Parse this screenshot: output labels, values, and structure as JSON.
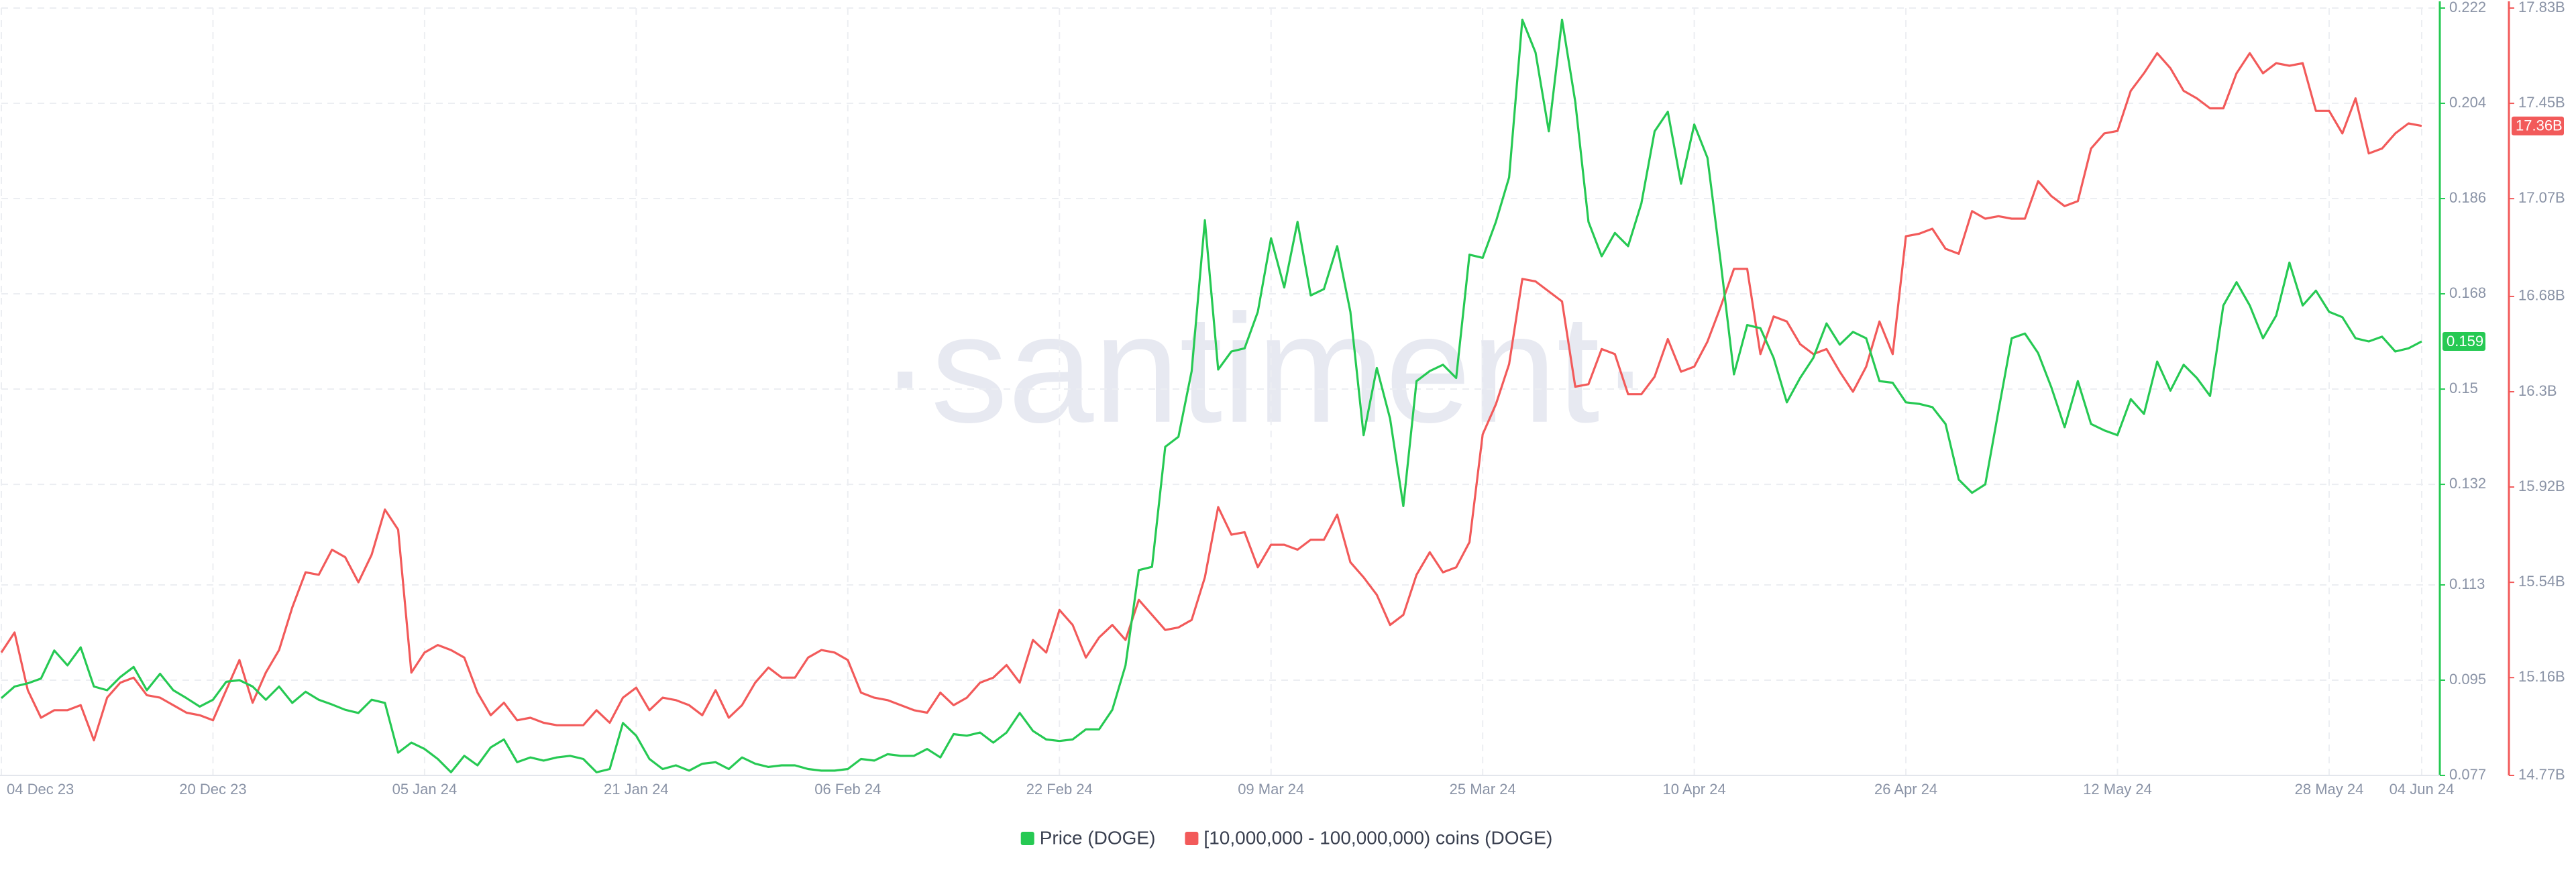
{
  "chart_data": {
    "type": "line",
    "watermark": "·santiment·",
    "categories": [
      "04 Dec 23",
      null,
      null,
      null,
      null,
      null,
      null,
      null,
      null,
      null,
      null,
      null,
      null,
      null,
      null,
      null,
      "20 Dec 23",
      null,
      null,
      null,
      null,
      null,
      null,
      null,
      null,
      null,
      null,
      null,
      null,
      null,
      null,
      null,
      "05 Jan 24",
      null,
      null,
      null,
      null,
      null,
      null,
      null,
      null,
      null,
      null,
      null,
      null,
      null,
      null,
      null,
      "21 Jan 24",
      null,
      null,
      null,
      null,
      null,
      null,
      null,
      null,
      null,
      null,
      null,
      null,
      null,
      null,
      null,
      "06 Feb 24",
      null,
      null,
      null,
      null,
      null,
      null,
      null,
      null,
      null,
      null,
      null,
      null,
      null,
      null,
      null,
      "22 Feb 24",
      null,
      null,
      null,
      null,
      null,
      null,
      null,
      null,
      null,
      null,
      null,
      null,
      null,
      null,
      null,
      "09 Mar 24",
      null,
      null,
      null,
      null,
      null,
      null,
      null,
      null,
      null,
      null,
      null,
      null,
      null,
      null,
      null,
      "25 Mar 24",
      null,
      null,
      null,
      null,
      null,
      null,
      null,
      null,
      null,
      null,
      null,
      null,
      null,
      null,
      null,
      "10 Apr 24",
      null,
      null,
      null,
      null,
      null,
      null,
      null,
      null,
      null,
      null,
      null,
      null,
      null,
      null,
      null,
      "26 Apr 24",
      null,
      null,
      null,
      null,
      null,
      null,
      null,
      null,
      null,
      null,
      null,
      null,
      null,
      null,
      null,
      "12 May 24",
      null,
      null,
      null,
      null,
      null,
      null,
      null,
      null,
      null,
      null,
      null,
      null,
      null,
      null,
      null,
      "28 May 24",
      null,
      null,
      null,
      null,
      null,
      null,
      "04 Jun 24"
    ],
    "series": [
      {
        "name": "Price (DOGE)",
        "color": "#26c953",
        "badge": 0.159,
        "values": [
          0.0916,
          0.0938,
          0.0944,
          0.0953,
          0.1006,
          0.0978,
          0.1012,
          0.0938,
          0.0931,
          0.0956,
          0.0975,
          0.0931,
          0.0962,
          0.0931,
          0.0916,
          0.09,
          0.0913,
          0.0947,
          0.095,
          0.0938,
          0.0913,
          0.0938,
          0.0907,
          0.0928,
          0.0913,
          0.0904,
          0.0894,
          0.0888,
          0.0913,
          0.0907,
          0.0813,
          0.0832,
          0.082,
          0.0801,
          0.0776,
          0.0807,
          0.0789,
          0.0823,
          0.0838,
          0.0795,
          0.0804,
          0.0798,
          0.0804,
          0.0807,
          0.0801,
          0.0776,
          0.0782,
          0.0869,
          0.0845,
          0.0801,
          0.0782,
          0.0789,
          0.0779,
          0.0792,
          0.0795,
          0.0782,
          0.0804,
          0.0792,
          0.0786,
          0.0789,
          0.0789,
          0.0782,
          0.0779,
          0.0779,
          0.0782,
          0.0801,
          0.0798,
          0.081,
          0.0807,
          0.0807,
          0.082,
          0.0804,
          0.0848,
          0.0845,
          0.0851,
          0.0832,
          0.0851,
          0.0888,
          0.0854,
          0.0838,
          0.0835,
          0.0838,
          0.0857,
          0.0857,
          0.0894,
          0.0978,
          0.1158,
          0.1164,
          0.1391,
          0.141,
          0.1534,
          0.1819,
          0.1537,
          0.1571,
          0.1577,
          0.1646,
          0.1785,
          0.1692,
          0.1816,
          0.1677,
          0.1689,
          0.177,
          0.1646,
          0.1413,
          0.154,
          0.1444,
          0.1279,
          0.1515,
          0.1534,
          0.1546,
          0.1521,
          0.1754,
          0.1748,
          0.1816,
          0.19,
          0.2198,
          0.2136,
          0.1987,
          0.2198,
          0.2043,
          0.1816,
          0.1751,
          0.1795,
          0.177,
          0.1851,
          0.1987,
          0.2024,
          0.1888,
          0.2,
          0.1937,
          0.1739,
          0.1528,
          0.1621,
          0.1615,
          0.1559,
          0.1475,
          0.1521,
          0.1559,
          0.1624,
          0.1584,
          0.1608,
          0.1596,
          0.1515,
          0.1512,
          0.1475,
          0.1472,
          0.1466,
          0.1434,
          0.1329,
          0.1304,
          0.132,
          0.1459,
          0.1596,
          0.1605,
          0.1568,
          0.1503,
          0.1428,
          0.1515,
          0.1434,
          0.1422,
          0.1413,
          0.1481,
          0.1453,
          0.1552,
          0.1497,
          0.1546,
          0.1521,
          0.1487,
          0.1658,
          0.1702,
          0.1658,
          0.1596,
          0.1639,
          0.1739,
          0.1658,
          0.1686,
          0.1646,
          0.1636,
          0.1596,
          0.159,
          0.1599,
          0.1571,
          0.1577,
          0.159
        ]
      },
      {
        "name": "[10,000,000 - 100,000,000) coins (DOGE)",
        "color": "#f25a5a",
        "axis": "y2",
        "badge": {
          "value": 17.36,
          "label": "17.36B"
        },
        "values": [
          15.26,
          15.34,
          15.11,
          15.0,
          15.03,
          15.03,
          15.05,
          14.91,
          15.08,
          15.14,
          15.16,
          15.09,
          15.08,
          15.05,
          15.02,
          15.01,
          14.99,
          15.11,
          15.23,
          15.06,
          15.18,
          15.27,
          15.44,
          15.58,
          15.57,
          15.67,
          15.64,
          15.54,
          15.65,
          15.83,
          15.75,
          15.18,
          15.26,
          15.29,
          15.27,
          15.24,
          15.1,
          15.01,
          15.06,
          14.99,
          15.0,
          14.98,
          14.97,
          14.97,
          14.97,
          15.03,
          14.98,
          15.08,
          15.12,
          15.03,
          15.08,
          15.07,
          15.05,
          15.01,
          15.11,
          15.0,
          15.05,
          15.14,
          15.2,
          15.16,
          15.16,
          15.24,
          15.27,
          15.26,
          15.23,
          15.1,
          15.08,
          15.07,
          15.05,
          15.03,
          15.02,
          15.1,
          15.05,
          15.08,
          15.14,
          15.16,
          15.21,
          15.14,
          15.31,
          15.26,
          15.43,
          15.37,
          15.24,
          15.32,
          15.37,
          15.31,
          15.47,
          15.41,
          15.35,
          15.36,
          15.39,
          15.56,
          15.84,
          15.73,
          15.74,
          15.6,
          15.69,
          15.69,
          15.67,
          15.71,
          15.71,
          15.81,
          15.62,
          15.56,
          15.49,
          15.37,
          15.41,
          15.57,
          15.66,
          15.58,
          15.6,
          15.7,
          16.13,
          16.25,
          16.41,
          16.75,
          16.74,
          16.7,
          16.66,
          16.32,
          16.33,
          16.47,
          16.45,
          16.29,
          16.29,
          16.36,
          16.51,
          16.38,
          16.4,
          16.5,
          16.64,
          16.79,
          16.79,
          16.45,
          16.6,
          16.58,
          16.49,
          16.45,
          16.47,
          16.38,
          16.3,
          16.4,
          16.58,
          16.45,
          16.92,
          16.93,
          16.95,
          16.87,
          16.85,
          17.02,
          16.99,
          17.0,
          16.99,
          16.99,
          17.14,
          17.08,
          17.04,
          17.06,
          17.27,
          17.33,
          17.34,
          17.5,
          17.57,
          17.65,
          17.59,
          17.5,
          17.47,
          17.43,
          17.43,
          17.57,
          17.65,
          17.57,
          17.61,
          17.6,
          17.61,
          17.42,
          17.42,
          17.33,
          17.47,
          17.25,
          17.27,
          17.33,
          17.37,
          17.36
        ]
      }
    ],
    "ylim": [
      0.077,
      0.222
    ],
    "yticks": [
      0.077,
      0.095,
      0.113,
      0.132,
      0.15,
      0.168,
      0.186,
      0.204,
      0.222
    ],
    "y2lim": [
      14.77,
      17.83
    ],
    "y2ticks": [
      {
        "value": 14.77,
        "label": "14.77B"
      },
      {
        "value": 15.16,
        "label": "15.16B"
      },
      {
        "value": 15.54,
        "label": "15.54B"
      },
      {
        "value": 15.92,
        "label": "15.92B"
      },
      {
        "value": 16.3,
        "label": "16.3B"
      },
      {
        "value": 16.68,
        "label": "16.68B"
      },
      {
        "value": 17.07,
        "label": "17.07B"
      },
      {
        "value": 17.45,
        "label": "17.45B"
      },
      {
        "value": 17.83,
        "label": "17.83B"
      }
    ],
    "grid": true,
    "legend": "bottom"
  }
}
